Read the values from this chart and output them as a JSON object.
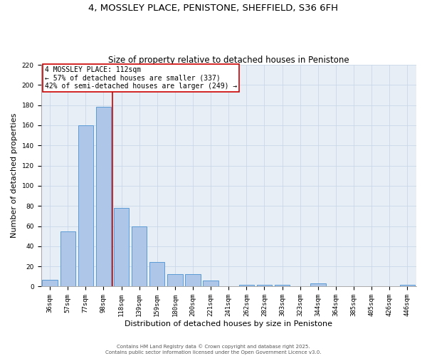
{
  "title_line1": "4, MOSSLEY PLACE, PENISTONE, SHEFFIELD, S36 6FH",
  "title_line2": "Size of property relative to detached houses in Penistone",
  "xlabel": "Distribution of detached houses by size in Penistone",
  "ylabel": "Number of detached properties",
  "categories": [
    "36sqm",
    "57sqm",
    "77sqm",
    "98sqm",
    "118sqm",
    "139sqm",
    "159sqm",
    "180sqm",
    "200sqm",
    "221sqm",
    "241sqm",
    "262sqm",
    "282sqm",
    "303sqm",
    "323sqm",
    "344sqm",
    "364sqm",
    "385sqm",
    "405sqm",
    "426sqm",
    "446sqm"
  ],
  "values": [
    7,
    55,
    160,
    178,
    78,
    60,
    24,
    12,
    12,
    6,
    0,
    2,
    2,
    2,
    0,
    3,
    0,
    0,
    0,
    0,
    2
  ],
  "bar_color": "#aec6e8",
  "bar_edge_color": "#5b9bd5",
  "bar_linewidth": 0.7,
  "vline_x_index": 4,
  "vline_color": "#cc0000",
  "vline_linewidth": 1.2,
  "annotation_text": "4 MOSSLEY PLACE: 112sqm\n← 57% of detached houses are smaller (337)\n42% of semi-detached houses are larger (249) →",
  "annotation_box_edge_color": "#cc0000",
  "ylim": [
    0,
    220
  ],
  "yticks": [
    0,
    20,
    40,
    60,
    80,
    100,
    120,
    140,
    160,
    180,
    200,
    220
  ],
  "grid_color": "#c8d8e8",
  "background_color": "#e8eef6",
  "footer_text": "Contains HM Land Registry data © Crown copyright and database right 2025.\nContains public sector information licensed under the Open Government Licence v3.0.",
  "title_fontsize": 9.5,
  "subtitle_fontsize": 8.5,
  "tick_fontsize": 6.5,
  "ylabel_fontsize": 8,
  "xlabel_fontsize": 8,
  "annotation_fontsize": 7,
  "footer_fontsize": 5
}
